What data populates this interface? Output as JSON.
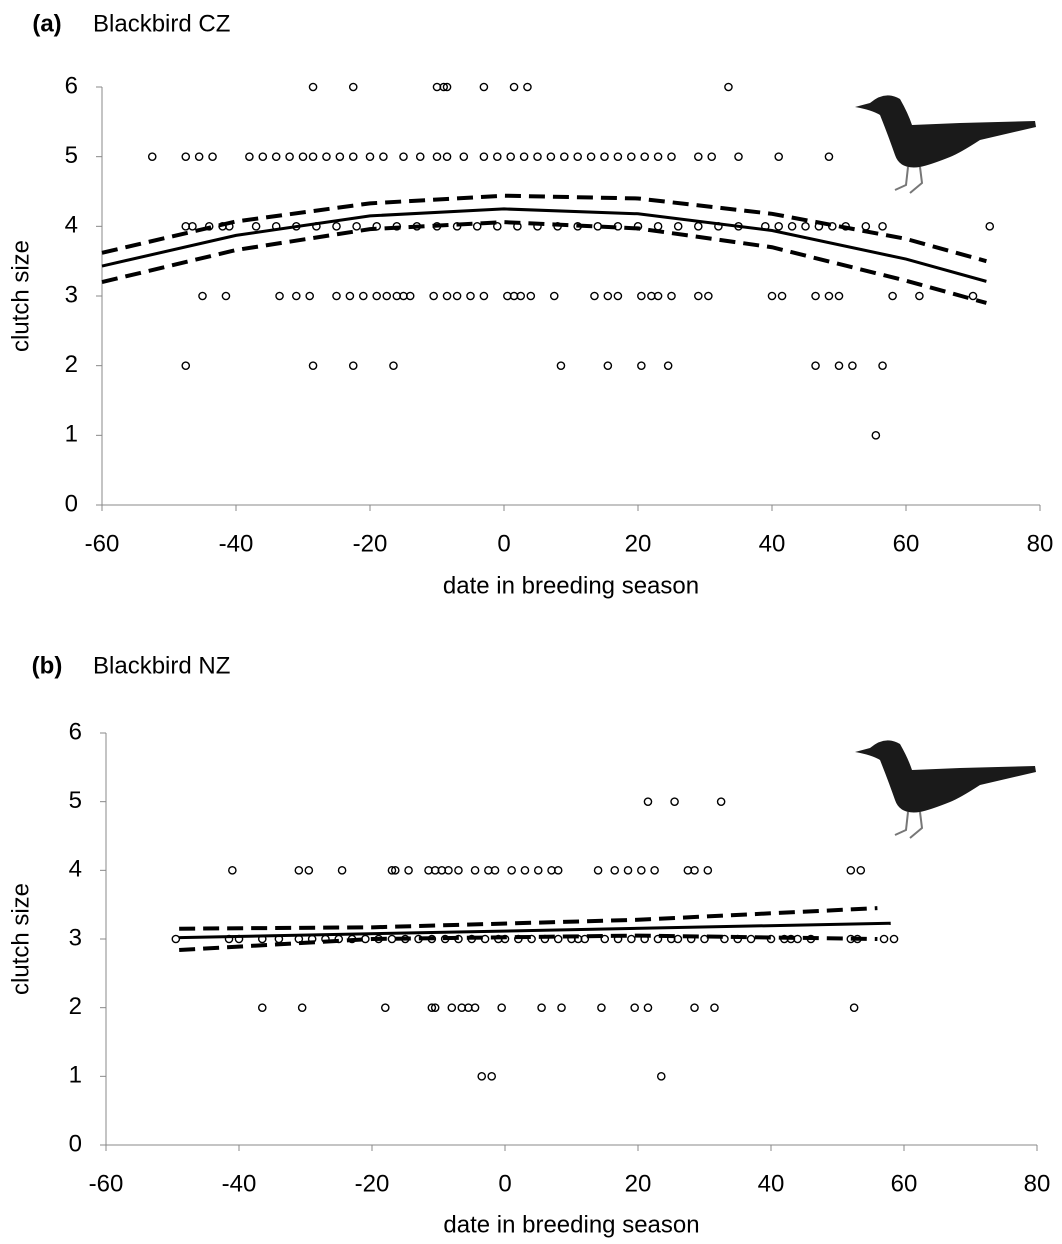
{
  "chart_data": [
    {
      "type": "scatter",
      "panel": "(a)",
      "title": "Blackbird CZ",
      "xlabel": "date in breeding season",
      "ylabel": "clutch size",
      "xlim": [
        -60,
        80
      ],
      "ylim": [
        0,
        6
      ],
      "xticks": [
        -60,
        -40,
        -20,
        0,
        20,
        40,
        60,
        80
      ],
      "yticks": [
        0,
        1,
        2,
        3,
        4,
        5,
        6
      ],
      "series": [
        {
          "kind": "points",
          "color": "#000000",
          "x": [
            -28.5,
            -22.5,
            -10,
            -9,
            -8.5,
            -3,
            1.5,
            3.5,
            33.5
          ],
          "values": [
            6,
            6,
            6,
            6,
            6,
            6,
            6,
            6,
            6
          ]
        },
        {
          "kind": "points",
          "color": "#000000",
          "x": [
            -52.5,
            -47.5,
            -45.5,
            -43.5,
            -38,
            -36,
            -34,
            -32,
            -30,
            -28.5,
            -26.5,
            -24.5,
            -22.5,
            -20,
            -18,
            -15,
            -12.5,
            -10,
            -8.5,
            -6,
            -3,
            -1,
            1,
            3,
            5,
            7,
            9,
            11,
            13,
            15,
            17,
            19,
            21,
            23,
            25,
            29,
            31,
            35,
            41,
            48.5
          ],
          "values": [
            5,
            5,
            5,
            5,
            5,
            5,
            5,
            5,
            5,
            5,
            5,
            5,
            5,
            5,
            5,
            5,
            5,
            5,
            5,
            5,
            5,
            5,
            5,
            5,
            5,
            5,
            5,
            5,
            5,
            5,
            5,
            5,
            5,
            5,
            5,
            5,
            5,
            5,
            5,
            5
          ]
        },
        {
          "kind": "points",
          "color": "#000000",
          "x": [
            -47.5,
            -46.5,
            -44,
            -42,
            -41,
            -37,
            -34,
            -31,
            -28,
            -25,
            -22,
            -19,
            -16,
            -13,
            -10,
            -7,
            -4,
            -1,
            2,
            5,
            8,
            11,
            14,
            17,
            20,
            23,
            26,
            29,
            32,
            35,
            39,
            41,
            43,
            45,
            47,
            49,
            51,
            54,
            56.5,
            72.5
          ],
          "values": [
            4,
            4,
            4,
            4,
            4,
            4,
            4,
            4,
            4,
            4,
            4,
            4,
            4,
            4,
            4,
            4,
            4,
            4,
            4,
            4,
            4,
            4,
            4,
            4,
            4,
            4,
            4,
            4,
            4,
            4,
            4,
            4,
            4,
            4,
            4,
            4,
            4,
            4,
            4,
            4
          ]
        },
        {
          "kind": "points",
          "color": "#000000",
          "x": [
            -45,
            -41.5,
            -33.5,
            -31,
            -29,
            -25,
            -23,
            -21,
            -19,
            -17.5,
            -16,
            -15,
            -14,
            -10.5,
            -8.5,
            -7,
            -5,
            -3,
            0.5,
            1.5,
            2.5,
            4,
            7.5,
            13.5,
            15.5,
            17,
            20.5,
            22,
            23,
            25,
            29,
            30.5,
            40,
            41.5,
            46.5,
            48.5,
            50,
            58,
            62,
            70
          ],
          "values": [
            3,
            3,
            3,
            3,
            3,
            3,
            3,
            3,
            3,
            3,
            3,
            3,
            3,
            3,
            3,
            3,
            3,
            3,
            3,
            3,
            3,
            3,
            3,
            3,
            3,
            3,
            3,
            3,
            3,
            3,
            3,
            3,
            3,
            3,
            3,
            3,
            3,
            3,
            3,
            3
          ]
        },
        {
          "kind": "points",
          "color": "#000000",
          "x": [
            -47.5,
            -28.5,
            -22.5,
            -16.5,
            8.5,
            15.5,
            20.5,
            24.5,
            46.5,
            50,
            52,
            56.5
          ],
          "values": [
            2,
            2,
            2,
            2,
            2,
            2,
            2,
            2,
            2,
            2,
            2,
            2
          ]
        },
        {
          "kind": "points",
          "color": "#000000",
          "x": [
            55.5
          ],
          "values": [
            1
          ]
        },
        {
          "kind": "line",
          "dash": false,
          "color": "#000000",
          "x": [
            -60,
            -40,
            -20,
            0,
            20,
            40,
            60,
            72
          ],
          "values": [
            3.43,
            3.87,
            4.15,
            4.25,
            4.18,
            3.94,
            3.53,
            3.21
          ]
        },
        {
          "kind": "line",
          "dash": true,
          "color": "#000000",
          "x": [
            -60,
            -40,
            -20,
            0,
            20,
            40,
            60,
            72
          ],
          "values": [
            3.62,
            4.07,
            4.33,
            4.44,
            4.4,
            4.18,
            3.82,
            3.5
          ]
        },
        {
          "kind": "line",
          "dash": true,
          "color": "#000000",
          "x": [
            -60,
            -40,
            -20,
            0,
            20,
            40,
            60,
            72
          ],
          "values": [
            3.2,
            3.66,
            3.96,
            4.06,
            3.97,
            3.7,
            3.22,
            2.9
          ]
        }
      ]
    },
    {
      "type": "scatter",
      "panel": "(b)",
      "title": "Blackbird NZ",
      "xlabel": "date in breeding season",
      "ylabel": "clutch size",
      "xlim": [
        -60,
        80
      ],
      "ylim": [
        0,
        6
      ],
      "xticks": [
        -60,
        -40,
        -20,
        0,
        20,
        40,
        60,
        80
      ],
      "yticks": [
        0,
        1,
        2,
        3,
        4,
        5,
        6
      ],
      "series": [
        {
          "kind": "points",
          "color": "#000000",
          "x": [
            21.5,
            25.5,
            32.5
          ],
          "values": [
            5,
            5,
            5
          ]
        },
        {
          "kind": "points",
          "color": "#000000",
          "x": [
            -41,
            -31,
            -29.5,
            -24.5,
            -17,
            -16.5,
            -14.5,
            -11.5,
            -10.5,
            -9.5,
            -8.5,
            -7,
            -4.5,
            -2.5,
            -1.5,
            1,
            3,
            5,
            7,
            8,
            14,
            16.5,
            18.5,
            20.5,
            22.5,
            27.5,
            28.5,
            30.5,
            52,
            53.5
          ],
          "values": [
            4,
            4,
            4,
            4,
            4,
            4,
            4,
            4,
            4,
            4,
            4,
            4,
            4,
            4,
            4,
            4,
            4,
            4,
            4,
            4,
            4,
            4,
            4,
            4,
            4,
            4,
            4,
            4,
            4,
            4
          ]
        },
        {
          "kind": "points",
          "color": "#000000",
          "x": [
            -49.5,
            -41.5,
            -40,
            -36.5,
            -34,
            -31,
            -29,
            -27,
            -25,
            -23,
            -21,
            -19,
            -17,
            -15,
            -13,
            -11,
            -9,
            -7,
            -5,
            -3,
            0,
            2,
            4,
            6,
            8,
            10,
            12,
            15,
            17,
            19,
            21,
            23,
            26,
            28,
            30,
            33,
            35,
            37,
            40,
            42,
            43,
            44,
            46,
            52,
            53,
            57,
            58.5,
            -1,
            11,
            25
          ],
          "values": [
            3,
            3,
            3,
            3,
            3,
            3,
            3,
            3,
            3,
            3,
            3,
            3,
            3,
            3,
            3,
            3,
            3,
            3,
            3,
            3,
            3,
            3,
            3,
            3,
            3,
            3,
            3,
            3,
            3,
            3,
            3,
            3,
            3,
            3,
            3,
            3,
            3,
            3,
            3,
            3,
            3,
            3,
            3,
            3,
            3,
            3,
            3,
            3,
            3,
            3
          ]
        },
        {
          "kind": "points",
          "color": "#000000",
          "x": [
            -36.5,
            -30.5,
            -18,
            -11,
            -10.5,
            -8,
            -6.5,
            -5.5,
            -4.5,
            -0.5,
            5.5,
            8.5,
            14.5,
            19.5,
            21.5,
            28.5,
            31.5,
            52.5
          ],
          "values": [
            2,
            2,
            2,
            2,
            2,
            2,
            2,
            2,
            2,
            2,
            2,
            2,
            2,
            2,
            2,
            2,
            2,
            2
          ]
        },
        {
          "kind": "points",
          "color": "#000000",
          "x": [
            -3.5,
            -2,
            23.5
          ],
          "values": [
            1,
            1,
            1
          ]
        },
        {
          "kind": "line",
          "dash": false,
          "color": "#000000",
          "x": [
            -49,
            58
          ],
          "values": [
            3.02,
            3.23
          ]
        },
        {
          "kind": "line",
          "dash": true,
          "color": "#000000",
          "x": [
            -49,
            -20,
            20,
            56
          ],
          "values": [
            3.15,
            3.17,
            3.28,
            3.45
          ]
        },
        {
          "kind": "line",
          "dash": true,
          "color": "#000000",
          "x": [
            -49,
            -20,
            20,
            56
          ],
          "values": [
            2.84,
            3.0,
            3.05,
            3.0
          ]
        }
      ]
    }
  ]
}
